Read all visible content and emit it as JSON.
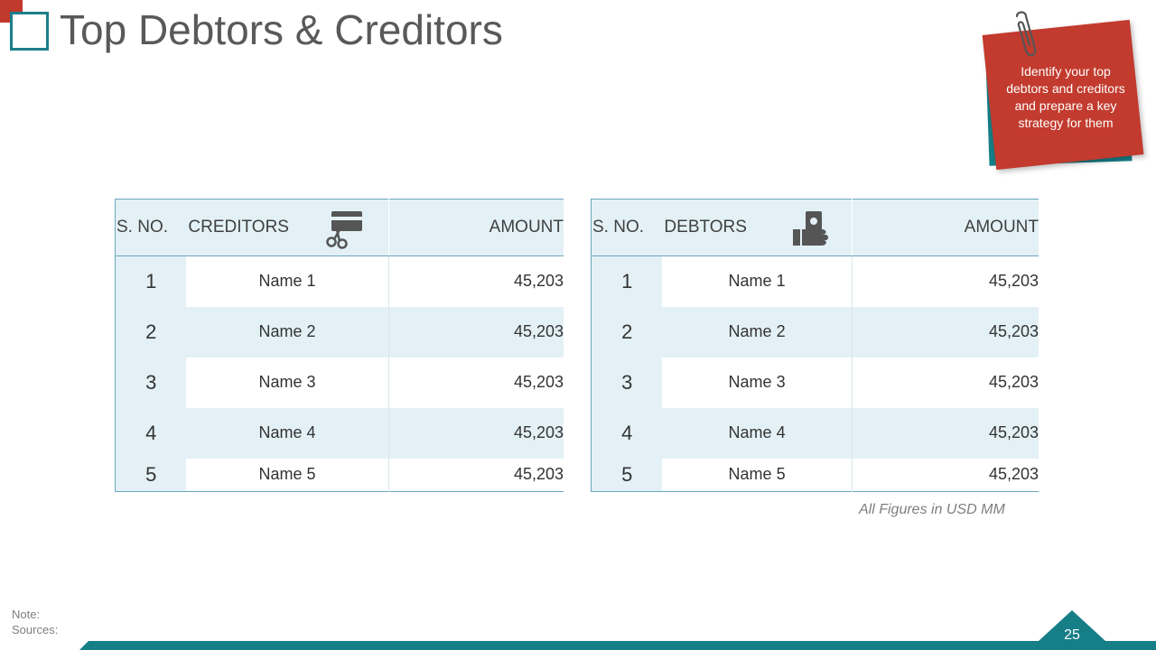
{
  "slide": {
    "title": "Top Debtors & Creditors",
    "page_number": "25",
    "footnote": "All Figures in USD MM",
    "note_label": "Note:",
    "sources_label": "Sources:"
  },
  "sticky_note": {
    "text": "Identify your top debtors and creditors and prepare a key strategy for them"
  },
  "colors": {
    "teal": "#167e87",
    "red": "#c23b2e",
    "header_bg": "#e3f1f6"
  },
  "creditors": {
    "headers": {
      "sno": "S. NO.",
      "name": "CREDITORS",
      "amount": "AMOUNT"
    },
    "icon": "credit-card-scissors-icon",
    "rows": [
      {
        "sno": "1",
        "name": "Name  1",
        "amount": "45,203"
      },
      {
        "sno": "2",
        "name": "Name  2",
        "amount": "45,203"
      },
      {
        "sno": "3",
        "name": "Name  3",
        "amount": "45,203"
      },
      {
        "sno": "4",
        "name": "Name  4",
        "amount": "45,203"
      },
      {
        "sno": "5",
        "name": "Name  5",
        "amount": "45,203"
      }
    ]
  },
  "debtors": {
    "headers": {
      "sno": "S. NO.",
      "name": "DEBTORS",
      "amount": "AMOUNT"
    },
    "icon": "hand-holding-money-icon",
    "rows": [
      {
        "sno": "1",
        "name": "Name  1",
        "amount": "45,203"
      },
      {
        "sno": "2",
        "name": "Name  2",
        "amount": "45,203"
      },
      {
        "sno": "3",
        "name": "Name  3",
        "amount": "45,203"
      },
      {
        "sno": "4",
        "name": "Name  4",
        "amount": "45,203"
      },
      {
        "sno": "5",
        "name": "Name  5",
        "amount": "45,203"
      }
    ]
  }
}
